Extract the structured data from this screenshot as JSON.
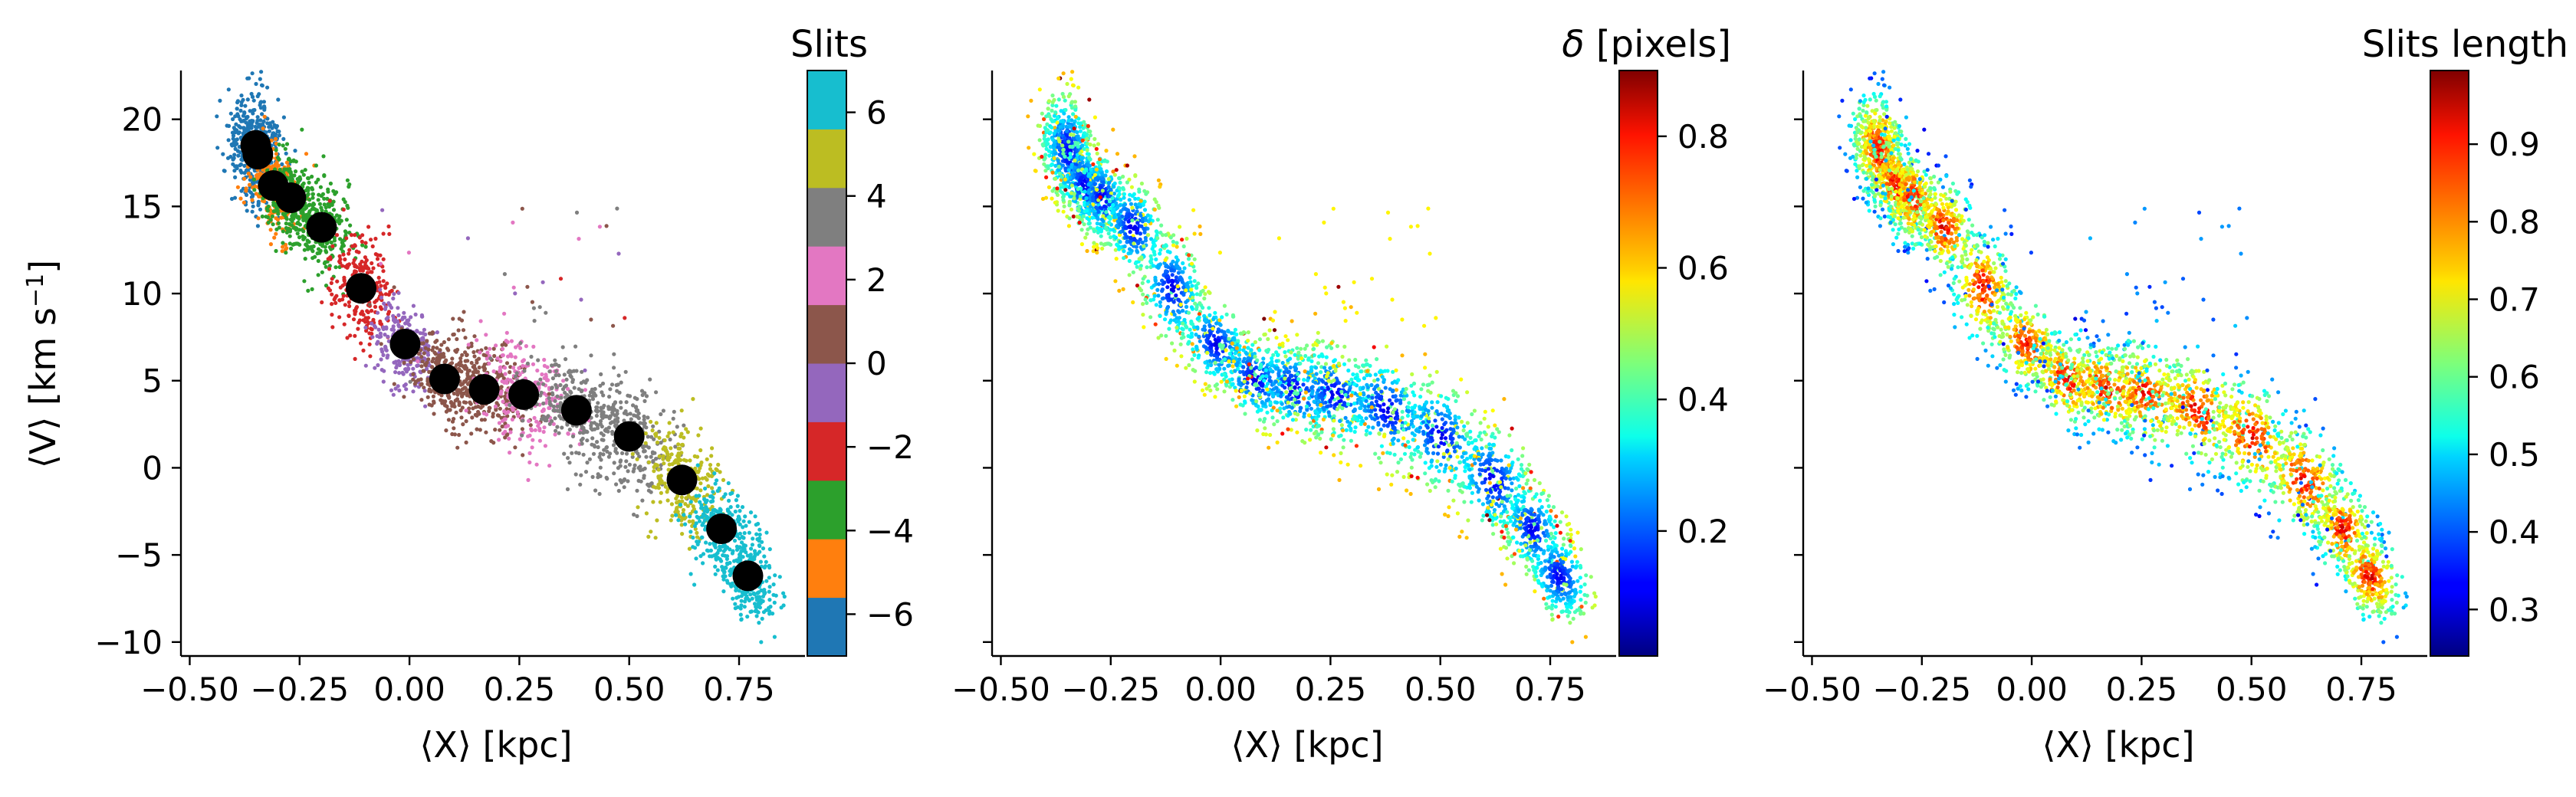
{
  "chart_data": [
    {
      "type": "scatter",
      "panel": "left",
      "xlabel": "⟨X⟩ [kpc]",
      "ylabel": "⟨V⟩ [km s",
      "ylabel_sup": "−1",
      "ylabel_close": "]",
      "xlim": [
        -0.52,
        0.9
      ],
      "ylim": [
        -10.8,
        22.8
      ],
      "xticks": [
        -0.5,
        -0.25,
        0.0,
        0.25,
        0.5,
        0.75
      ],
      "xtick_labels": [
        "−0.50",
        "−0.25",
        "0.00",
        "0.25",
        "0.50",
        "0.75"
      ],
      "yticks": [
        -10,
        -5,
        0,
        5,
        10,
        15,
        20
      ],
      "ytick_labels": [
        "−10",
        "−5",
        "0",
        "5",
        "10",
        "15",
        "20"
      ],
      "colorbar": {
        "title": "Slits",
        "type": "discrete",
        "range": [
          -7,
          7
        ],
        "colors": [
          "#1f77b4",
          "#ff7f0e",
          "#2ca02c",
          "#d62728",
          "#9467bd",
          "#8c564b",
          "#e377c2",
          "#7f7f7f",
          "#bcbd22",
          "#17becf"
        ],
        "ticks": [
          -6,
          -4,
          -2,
          0,
          2,
          4,
          6
        ],
        "tick_labels": [
          "−6",
          "−4",
          "−2",
          "0",
          "2",
          "4",
          "6"
        ]
      },
      "means": {
        "x": [
          -0.35,
          -0.345,
          -0.31,
          -0.27,
          -0.2,
          -0.11,
          -0.01,
          0.08,
          0.17,
          0.26,
          0.38,
          0.5,
          0.62,
          0.71,
          0.77
        ],
        "y": [
          18.5,
          18.0,
          16.2,
          15.5,
          13.8,
          10.3,
          7.1,
          5.1,
          4.5,
          4.2,
          3.3,
          1.8,
          -0.7,
          -3.5,
          -6.2
        ]
      }
    },
    {
      "type": "scatter",
      "panel": "middle",
      "xlabel": "⟨X⟩ [kpc]",
      "xlim": [
        -0.52,
        0.9
      ],
      "ylim": [
        -10.8,
        22.8
      ],
      "xticks": [
        -0.5,
        -0.25,
        0.0,
        0.25,
        0.5,
        0.75
      ],
      "xtick_labels": [
        "−0.50",
        "−0.25",
        "0.00",
        "0.25",
        "0.50",
        "0.75"
      ],
      "colorbar": {
        "title": "δ [pixels]",
        "title_symbol": "δ",
        "title_rest": " [pixels]",
        "type": "jet",
        "range": [
          0.01,
          0.9
        ],
        "ticks": [
          0.2,
          0.4,
          0.6,
          0.8
        ],
        "tick_labels": [
          "0.2",
          "0.4",
          "0.6",
          "0.8"
        ]
      }
    },
    {
      "type": "scatter",
      "panel": "right",
      "xlabel": "⟨X⟩ [kpc]",
      "xlim": [
        -0.52,
        0.9
      ],
      "ylim": [
        -10.8,
        22.8
      ],
      "xticks": [
        -0.5,
        -0.25,
        0.0,
        0.25,
        0.5,
        0.75
      ],
      "xtick_labels": [
        "−0.50",
        "−0.25",
        "0.00",
        "0.25",
        "0.50",
        "0.75"
      ],
      "colorbar": {
        "title": "Slits length",
        "type": "jet",
        "range": [
          0.24,
          0.995
        ],
        "ticks": [
          0.3,
          0.4,
          0.5,
          0.6,
          0.7,
          0.8,
          0.9
        ],
        "tick_labels": [
          "0.3",
          "0.4",
          "0.5",
          "0.6",
          "0.7",
          "0.8",
          "0.9"
        ]
      }
    }
  ]
}
